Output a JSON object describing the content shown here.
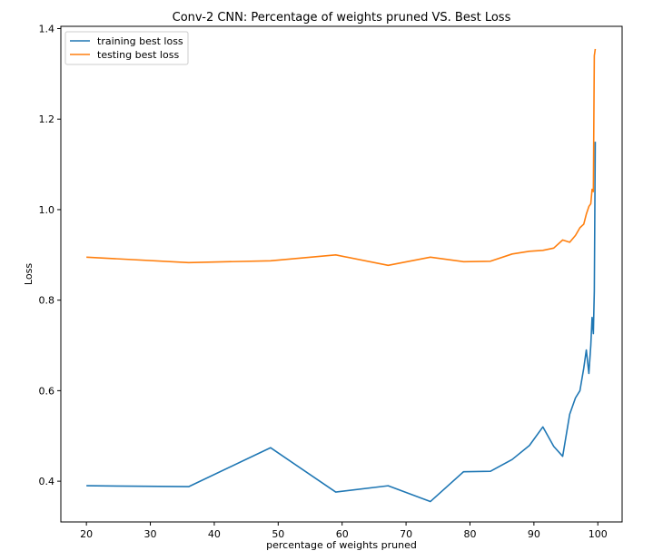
{
  "chart_data": {
    "type": "line",
    "title": "Conv-2 CNN: Percentage of weights pruned VS. Best Loss",
    "xlabel": "percentage of weights pruned",
    "ylabel": "Loss",
    "xlim": [
      16,
      103.8
    ],
    "ylim": [
      0.31,
      1.405
    ],
    "xticks": [
      20,
      30,
      40,
      50,
      60,
      70,
      80,
      90,
      100
    ],
    "yticks": [
      0.4,
      0.6,
      0.8,
      1.0,
      1.2,
      1.4
    ],
    "ytick_labels": [
      "0.4",
      "0.6",
      "0.8",
      "1.0",
      "1.2",
      "1.4"
    ],
    "grid": false,
    "legend_position": "top-left",
    "x": [
      20.0,
      36.0,
      48.8,
      59.0,
      67.2,
      73.8,
      79.0,
      83.2,
      86.6,
      89.3,
      91.4,
      93.1,
      94.5,
      95.6,
      96.5,
      97.2,
      97.8,
      98.2,
      98.6,
      98.9,
      99.1,
      99.3,
      99.45,
      99.6
    ],
    "series": [
      {
        "name": "training best loss",
        "color": "#1f77b4",
        "values": [
          0.39,
          0.388,
          0.474,
          0.376,
          0.39,
          0.355,
          0.421,
          0.422,
          0.448,
          0.479,
          0.52,
          0.477,
          0.455,
          0.548,
          0.584,
          0.6,
          0.65,
          0.69,
          0.638,
          0.7,
          0.762,
          0.726,
          0.82,
          1.15
        ]
      },
      {
        "name": "testing best loss",
        "color": "#ff7f0e",
        "values": [
          0.895,
          0.883,
          0.887,
          0.9,
          0.877,
          0.895,
          0.885,
          0.886,
          0.902,
          0.908,
          0.91,
          0.915,
          0.933,
          0.928,
          0.943,
          0.96,
          0.968,
          0.99,
          1.007,
          1.013,
          1.045,
          1.04,
          1.34,
          1.355
        ]
      }
    ]
  }
}
